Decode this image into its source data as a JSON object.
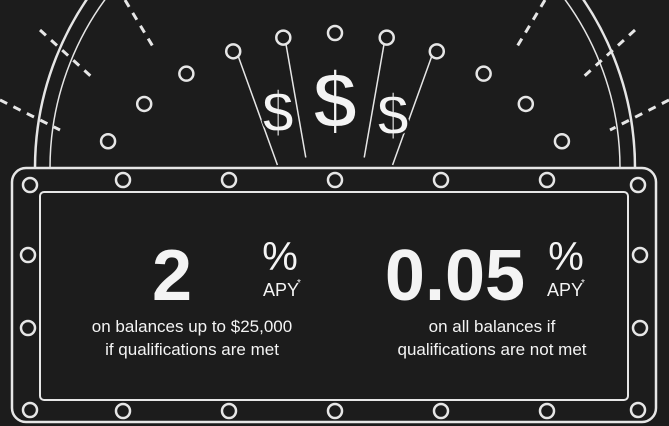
{
  "symbols": [
    "$",
    "$",
    "$"
  ],
  "rates": [
    {
      "value": "2",
      "unit": "%",
      "label": "APY",
      "note": "*",
      "lines": [
        "on balances up to $25,000",
        "if qualifications are met"
      ]
    },
    {
      "value": "0.05",
      "unit": "%",
      "label": "APY",
      "note": "*",
      "lines": [
        "on all balances if",
        "qualifications are not met"
      ]
    }
  ]
}
